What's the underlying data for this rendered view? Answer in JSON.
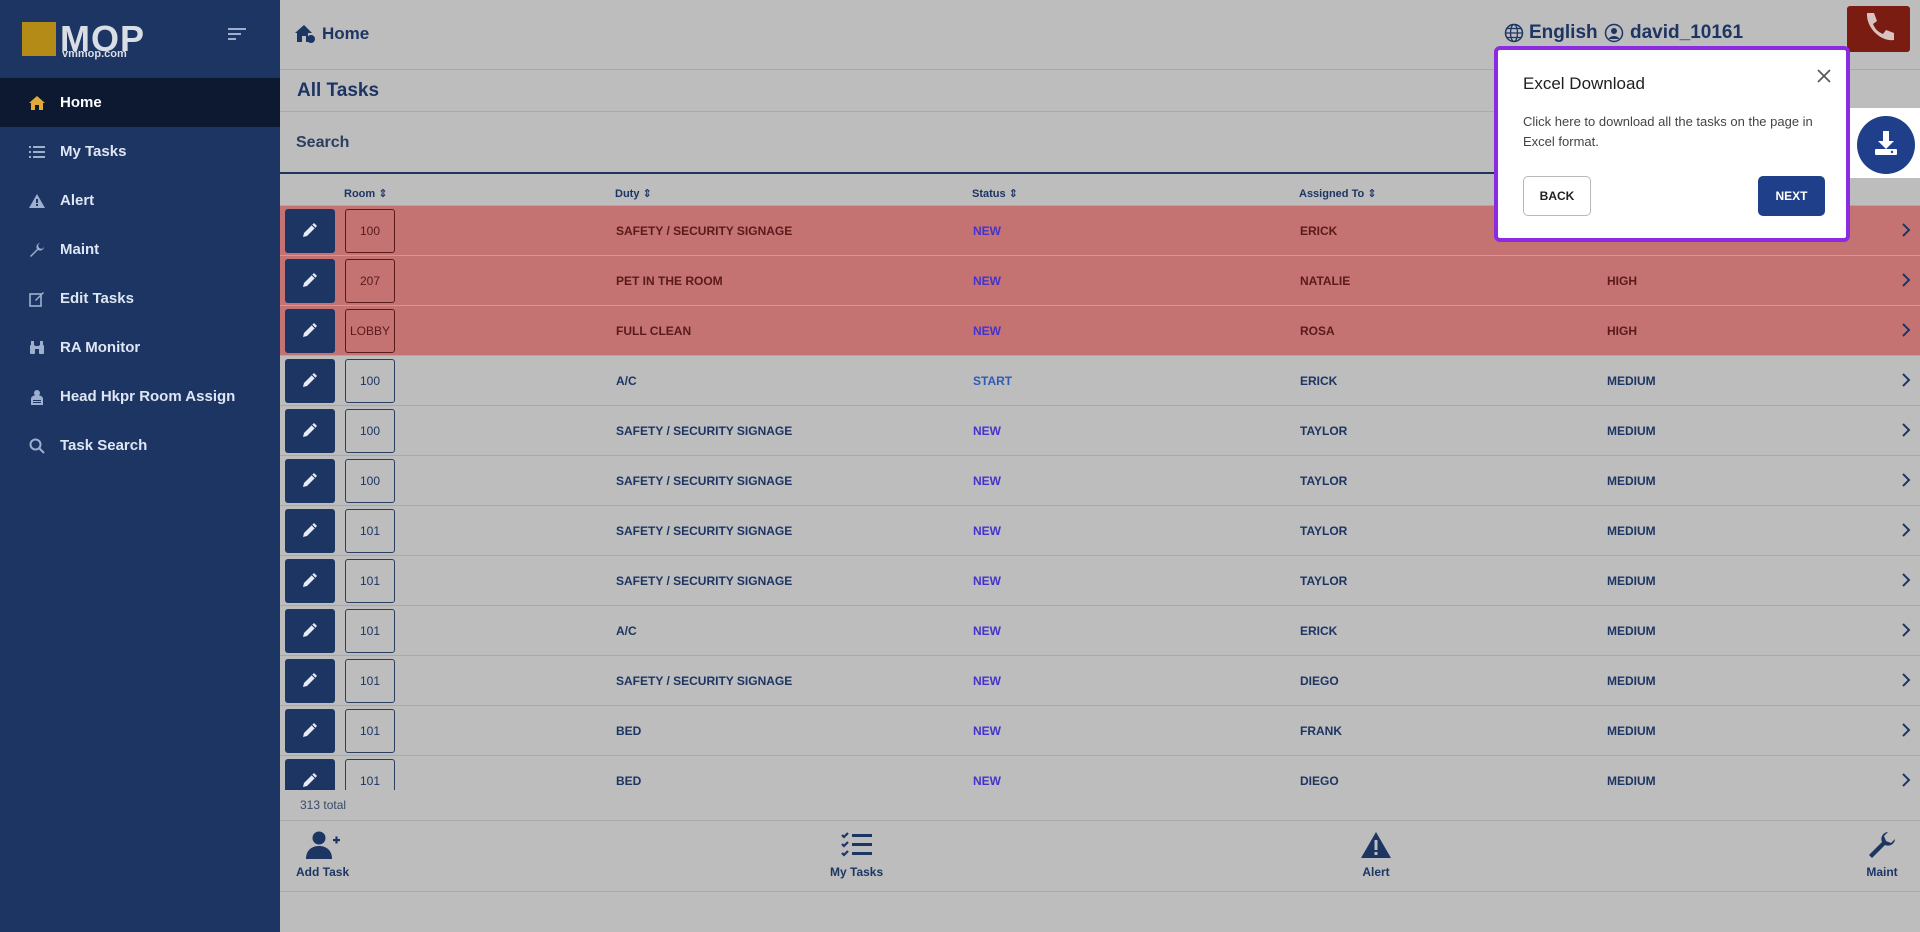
{
  "brand": {
    "name": "MOP",
    "url": "vmmop.com"
  },
  "sidebar": {
    "items": [
      {
        "label": "Home",
        "icon": "home-icon"
      },
      {
        "label": "My Tasks",
        "icon": "list-icon"
      },
      {
        "label": "Alert",
        "icon": "alert-icon"
      },
      {
        "label": "Maint",
        "icon": "wrench-icon"
      },
      {
        "label": "Edit Tasks",
        "icon": "edit-icon"
      },
      {
        "label": "RA Monitor",
        "icon": "binoculars-icon"
      },
      {
        "label": "Head Hkpr Room Assign",
        "icon": "person-icon"
      },
      {
        "label": "Task Search",
        "icon": "search-icon"
      }
    ]
  },
  "header": {
    "breadcrumb": "Home",
    "language": "English",
    "username": "david_10161"
  },
  "page": {
    "title": "All Tasks",
    "search_placeholder": "Search",
    "total": "313 total"
  },
  "table": {
    "columns": {
      "room": "Room",
      "duty": "Duty",
      "status": "Status",
      "assigned": "Assigned To"
    },
    "rows": [
      {
        "room": "100",
        "duty": "SAFETY / SECURITY SIGNAGE",
        "status": "NEW",
        "assigned": "ERICK",
        "priority": "",
        "highlight": true
      },
      {
        "room": "207",
        "duty": "PET IN THE ROOM",
        "status": "NEW",
        "assigned": "NATALIE",
        "priority": "HIGH",
        "highlight": true
      },
      {
        "room": "LOBBY",
        "duty": "FULL CLEAN",
        "status": "NEW",
        "assigned": "ROSA",
        "priority": "HIGH",
        "highlight": true
      },
      {
        "room": "100",
        "duty": "A/C",
        "status": "START",
        "assigned": "ERICK",
        "priority": "MEDIUM",
        "highlight": false
      },
      {
        "room": "100",
        "duty": "SAFETY / SECURITY SIGNAGE",
        "status": "NEW",
        "assigned": "TAYLOR",
        "priority": "MEDIUM",
        "highlight": false
      },
      {
        "room": "100",
        "duty": "SAFETY / SECURITY SIGNAGE",
        "status": "NEW",
        "assigned": "TAYLOR",
        "priority": "MEDIUM",
        "highlight": false
      },
      {
        "room": "101",
        "duty": "SAFETY / SECURITY SIGNAGE",
        "status": "NEW",
        "assigned": "TAYLOR",
        "priority": "MEDIUM",
        "highlight": false
      },
      {
        "room": "101",
        "duty": "SAFETY / SECURITY SIGNAGE",
        "status": "NEW",
        "assigned": "TAYLOR",
        "priority": "MEDIUM",
        "highlight": false
      },
      {
        "room": "101",
        "duty": "A/C",
        "status": "NEW",
        "assigned": "ERICK",
        "priority": "MEDIUM",
        "highlight": false
      },
      {
        "room": "101",
        "duty": "SAFETY / SECURITY SIGNAGE",
        "status": "NEW",
        "assigned": "DIEGO",
        "priority": "MEDIUM",
        "highlight": false
      },
      {
        "room": "101",
        "duty": "BED",
        "status": "NEW",
        "assigned": "FRANK",
        "priority": "MEDIUM",
        "highlight": false
      },
      {
        "room": "101",
        "duty": "BED",
        "status": "NEW",
        "assigned": "DIEGO",
        "priority": "MEDIUM",
        "highlight": false
      }
    ]
  },
  "bottombar": {
    "items": [
      {
        "label": "Add Task",
        "icon": "add-person-icon"
      },
      {
        "label": "My Tasks",
        "icon": "checklist-icon"
      },
      {
        "label": "Alert",
        "icon": "alert-icon"
      },
      {
        "label": "Maint",
        "icon": "wrench-icon"
      }
    ]
  },
  "popup": {
    "title": "Excel Download",
    "body": "Click here to download all the tasks on the page in Excel format.",
    "back_label": "BACK",
    "next_label": "NEXT"
  },
  "colors": {
    "sidebar_bg": "#1c3563",
    "highlight_row": "#c47272",
    "popup_border": "#8a2be2",
    "primary": "#1f3f8a"
  }
}
